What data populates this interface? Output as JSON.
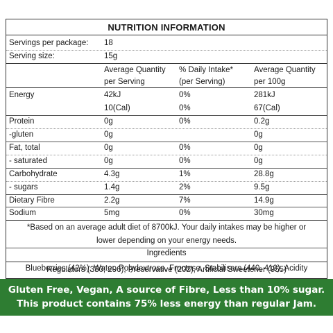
{
  "panel": {
    "title": "NUTRITION INFORMATION",
    "servings_label": "Servings per package:",
    "servings_value": "18",
    "serving_size_label": "Serving size:",
    "serving_size_value": "15g",
    "headers": {
      "col1_line1": "Average Quantity",
      "col1_line2": "per Serving",
      "col2_line1": "% Daily Intake*",
      "col2_line2": "(per Serving)",
      "col3_line1": "Average Quantity",
      "col3_line2": "per 100g"
    },
    "rows": [
      {
        "name": "Energy",
        "serving": "42kJ",
        "daily": "0%",
        "per100": "281kJ"
      },
      {
        "name": "",
        "serving": "10(Cal)",
        "daily": "0%",
        "per100": "67(Cal)"
      },
      {
        "name": "Protein",
        "serving": "0g",
        "daily": "0%",
        "per100": "0.2g"
      },
      {
        "name": " -gluten",
        "serving": "0g",
        "daily": "",
        "per100": "0g"
      },
      {
        "name": "Fat, total",
        "serving": "0g",
        "daily": "0%",
        "per100": "0g"
      },
      {
        "name": " - saturated",
        "serving": "0g",
        "daily": "0%",
        "per100": "0g"
      },
      {
        "name": "Carbohydrate",
        "serving": "4.3g",
        "daily": "1%",
        "per100": "28.8g"
      },
      {
        "name": " - sugars",
        "serving": "1.4g",
        "daily": "2%",
        "per100": "9.5g"
      },
      {
        "name": "Dietary Fibre",
        "serving": "2.2g",
        "daily": "7%",
        "per100": "14.9g"
      },
      {
        "name": "Sodium",
        "serving": "5mg",
        "daily": "0%",
        "per100": "30mg"
      }
    ],
    "footnote_line1": "*Based on an average adult diet of 8700kJ. Your daily intakes may be higher or",
    "footnote_line2": "lower depending on your energy needs.",
    "ingredients_title": "Ingredients",
    "ingredients_line1": "Blueberries (42%), Water, Polydextrose, Fructose, Stabilisers (440, 410), Acidity",
    "ingredients_line2": "Regulators (330, 296), Preservative (202), Artificial Sweetener (955)"
  },
  "banner": {
    "line1": "Gluten Free, Vegan, A source of Fibre, Less than 10% sugar.",
    "line2": "This product contains 75% less energy than regular Jam."
  },
  "colors": {
    "banner_bg": "#2e7d32",
    "banner_text": "#ffffff"
  }
}
